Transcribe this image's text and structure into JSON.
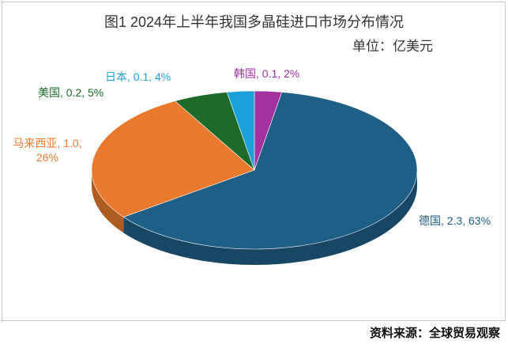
{
  "chart_data": {
    "type": "pie3d",
    "title": "图1  2024年上半年我国多晶硅进口市场分布情况",
    "subtitle": "单位：亿美元",
    "source": "资料来源：全球贸易观察",
    "categories": [
      "韩国",
      "德国",
      "马来西亚",
      "美国",
      "日本"
    ],
    "values": [
      0.1,
      2.3,
      1.0,
      0.2,
      0.1
    ],
    "value_labels": [
      "韩国, 0.1, 2%",
      "德国, 2.3, 63%",
      "马来西亚, 1.0, 26%",
      "美国, 0.2, 5%",
      "日本, 0.1, 4%"
    ],
    "colors": [
      "#a3319f",
      "#1f5e85",
      "#e97a2d",
      "#1d6a2b",
      "#1ba0d9"
    ]
  }
}
